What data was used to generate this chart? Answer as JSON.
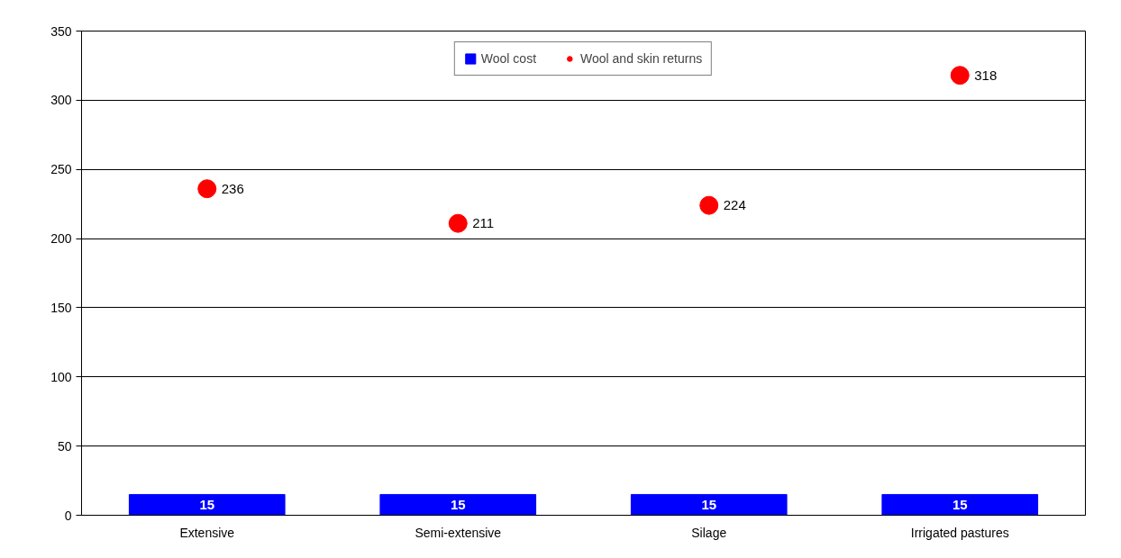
{
  "chart_data": {
    "type": "bar",
    "categories": [
      "Extensive",
      "Semi-extensive",
      "Silage",
      "Irrigated pastures"
    ],
    "series": [
      {
        "name": "Wool cost",
        "color": "#0000ff",
        "values": [
          15,
          15,
          15,
          15
        ]
      },
      {
        "name": "Wool and skin returns",
        "type": "scatter",
        "color": "#ff0000",
        "values": [
          236,
          211,
          224,
          318
        ]
      }
    ],
    "ylim": [
      0,
      350
    ],
    "yticks": [
      0,
      50,
      100,
      150,
      200,
      250,
      300,
      350
    ],
    "grid": "y",
    "legend": "top",
    "marker": "circle",
    "data_labels": true
  }
}
